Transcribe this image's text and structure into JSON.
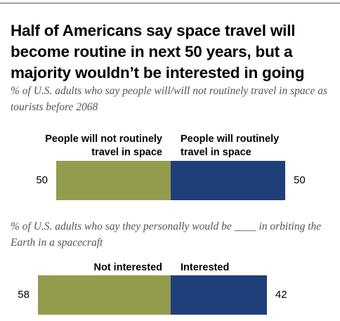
{
  "title": "Half of Americans say space travel will become routine in next 50 years, but a majority wouldn’t be interested in going",
  "colors": {
    "negative": "#939C4D",
    "positive": "#1F3F7B",
    "subtitle_text": "#555555"
  },
  "chart_data": [
    {
      "type": "bar",
      "orientation": "horizontal-diverging",
      "subtitle": "% of U.S. adults who say people will/will not routinely travel in space as tourists before 2068",
      "categories": [
        "People will not routinely travel in space",
        "People will routinely travel in space"
      ],
      "values": [
        50,
        50
      ],
      "value_labels": [
        "50",
        "50"
      ],
      "colors": [
        "#939C4D",
        "#1F3F7B"
      ]
    },
    {
      "type": "bar",
      "orientation": "horizontal-diverging",
      "subtitle": "% of U.S. adults who say they personally would be ____ in orbiting the Earth in a spacecraft",
      "categories": [
        "Not interested",
        "Interested"
      ],
      "values": [
        58,
        42
      ],
      "value_labels": [
        "58",
        "42"
      ],
      "colors": [
        "#939C4D",
        "#1F3F7B"
      ]
    }
  ]
}
